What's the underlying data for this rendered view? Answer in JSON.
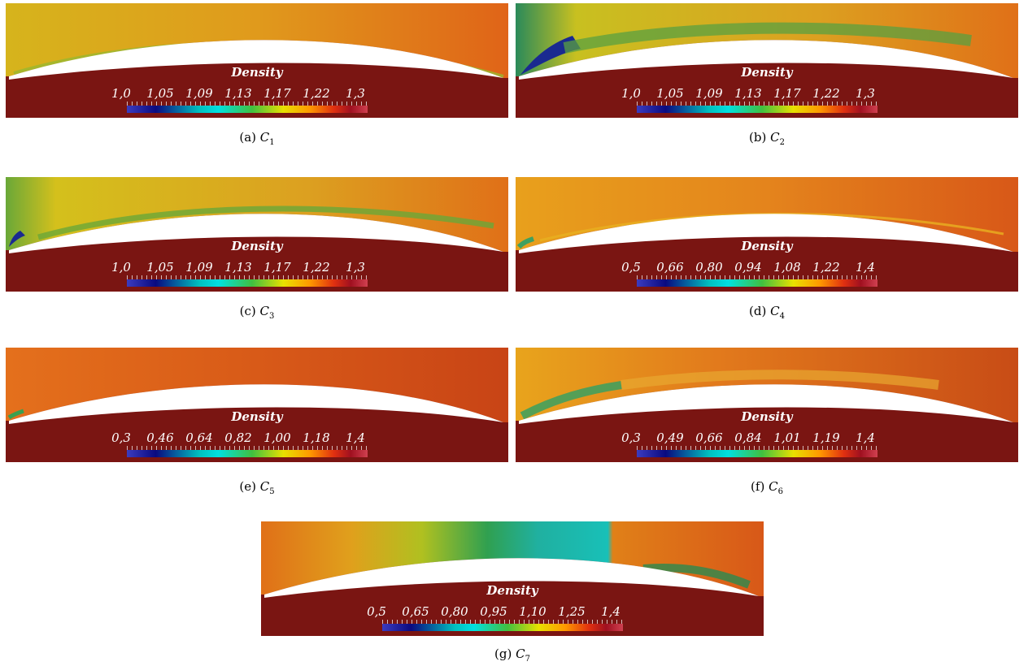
{
  "figure": {
    "colorbar_title": "Density",
    "panels": [
      {
        "id": "a",
        "caption_prefix": "(a)",
        "caption_symbol": "C",
        "caption_sub": "1",
        "ticks": [
          "1,0",
          "1,05",
          "1,09",
          "1,13",
          "1,17",
          "1,22",
          "1,3"
        ]
      },
      {
        "id": "b",
        "caption_prefix": "(b)",
        "caption_symbol": "C",
        "caption_sub": "2",
        "ticks": [
          "1,0",
          "1,05",
          "1,09",
          "1,13",
          "1,17",
          "1,22",
          "1,3"
        ]
      },
      {
        "id": "c",
        "caption_prefix": "(c)",
        "caption_symbol": "C",
        "caption_sub": "3",
        "ticks": [
          "1,0",
          "1,05",
          "1,09",
          "1,13",
          "1,17",
          "1,22",
          "1,3"
        ]
      },
      {
        "id": "d",
        "caption_prefix": "(d)",
        "caption_symbol": "C",
        "caption_sub": "4",
        "ticks": [
          "0,5",
          "0,66",
          "0,80",
          "0,94",
          "1,08",
          "1,22",
          "1,4"
        ]
      },
      {
        "id": "e",
        "caption_prefix": "(e)",
        "caption_symbol": "C",
        "caption_sub": "5",
        "ticks": [
          "0,3",
          "0,46",
          "0,64",
          "0,82",
          "1,00",
          "1,18",
          "1,4"
        ]
      },
      {
        "id": "f",
        "caption_prefix": "(f)",
        "caption_symbol": "C",
        "caption_sub": "6",
        "ticks": [
          "0,3",
          "0,49",
          "0,66",
          "0,84",
          "1,01",
          "1,19",
          "1,4"
        ]
      },
      {
        "id": "g",
        "caption_prefix": "(g)",
        "caption_symbol": "C",
        "caption_sub": "7",
        "ticks": [
          "0,5",
          "0,65",
          "0,80",
          "0,95",
          "1,10",
          "1,25",
          "1,4"
        ]
      }
    ]
  },
  "colors": {
    "upper_field": "#e0781c",
    "lower_field": "#7a1512",
    "airfoil": "#ffffff"
  }
}
